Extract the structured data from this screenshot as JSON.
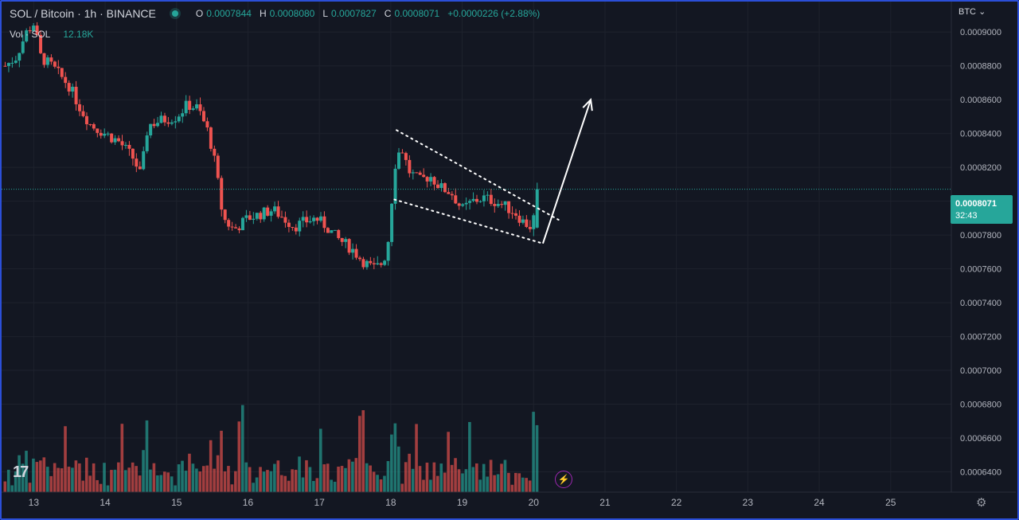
{
  "header": {
    "symbol": "SOL / Bitcoin · 1h · BINANCE",
    "o_label": "O",
    "o_value": "0.0007844",
    "h_label": "H",
    "h_value": "0.0008080",
    "l_label": "L",
    "l_value": "0.0007827",
    "c_label": "C",
    "c_value": "0.0008071",
    "change": "+0.0000226 (+2.88%)",
    "volume_label": "Vol · SOL",
    "volume_value": "12.18K"
  },
  "currency_dropdown": "BTC",
  "price_tag": {
    "price": "0.0008071",
    "countdown": "32:43"
  },
  "logo": "17",
  "colors": {
    "up": "#26a69a",
    "down": "#ef5350",
    "background": "#131722",
    "grid": "#1e222d",
    "text": "#b2b5be"
  },
  "chart_data": {
    "type": "candlestick",
    "y_tick_labels": [
      "0.0009000",
      "0.0008800",
      "0.0008600",
      "0.0008400",
      "0.0008200",
      "0.0008000",
      "0.0007800",
      "0.0007600",
      "0.0007400",
      "0.0007200",
      "0.0007000",
      "0.0006800",
      "0.0006600",
      "0.0006400"
    ],
    "y_ticks": [
      0.0009,
      0.00088,
      0.00086,
      0.00084,
      0.00082,
      0.0008,
      0.00078,
      0.00076,
      0.00074,
      0.00072,
      0.0007,
      0.00068,
      0.00066,
      0.00064
    ],
    "x_tick_labels": [
      "13",
      "14",
      "15",
      "16",
      "17",
      "18",
      "19",
      "20",
      "21",
      "22",
      "23",
      "24",
      "25"
    ],
    "x_ticks": [
      13,
      14,
      15,
      16,
      17,
      18,
      19,
      20,
      21,
      22,
      23,
      24,
      25
    ],
    "ylim": [
      0.000628,
      0.000918
    ],
    "xlim": [
      12.55,
      25.85
    ],
    "price_path": [
      [
        12.6,
        0.00088
      ],
      [
        12.75,
        0.000885
      ],
      [
        12.9,
        0.0009
      ],
      [
        13.0,
        0.000905
      ],
      [
        13.1,
        0.000885
      ],
      [
        13.25,
        0.00088
      ],
      [
        13.5,
        0.000868
      ],
      [
        13.65,
        0.000855
      ],
      [
        13.8,
        0.000845
      ],
      [
        14.0,
        0.00084
      ],
      [
        14.2,
        0.000835
      ],
      [
        14.4,
        0.000825
      ],
      [
        14.5,
        0.000815
      ],
      [
        14.6,
        0.000845
      ],
      [
        14.8,
        0.000848
      ],
      [
        15.0,
        0.00085
      ],
      [
        15.15,
        0.000857
      ],
      [
        15.3,
        0.000855
      ],
      [
        15.45,
        0.00084
      ],
      [
        15.55,
        0.00082
      ],
      [
        15.65,
        0.00079
      ],
      [
        15.8,
        0.000783
      ],
      [
        16.0,
        0.00079
      ],
      [
        16.15,
        0.000792
      ],
      [
        16.35,
        0.000795
      ],
      [
        16.5,
        0.00079
      ],
      [
        16.65,
        0.000785
      ],
      [
        16.8,
        0.000788
      ],
      [
        16.95,
        0.00079
      ],
      [
        17.1,
        0.000785
      ],
      [
        17.25,
        0.000778
      ],
      [
        17.45,
        0.000772
      ],
      [
        17.6,
        0.000765
      ],
      [
        17.75,
        0.00076
      ],
      [
        17.85,
        0.000762
      ],
      [
        17.95,
        0.00077
      ],
      [
        18.0,
        0.000795
      ],
      [
        18.07,
        0.000825
      ],
      [
        18.15,
        0.000832
      ],
      [
        18.25,
        0.000818
      ],
      [
        18.4,
        0.000812
      ],
      [
        18.55,
        0.000815
      ],
      [
        18.7,
        0.000808
      ],
      [
        18.85,
        0.000805
      ],
      [
        19.0,
        0.000795
      ],
      [
        19.15,
        0.0008
      ],
      [
        19.3,
        0.000802
      ],
      [
        19.45,
        0.0008
      ],
      [
        19.6,
        0.000797
      ],
      [
        19.75,
        0.000793
      ],
      [
        19.85,
        0.000788
      ],
      [
        19.95,
        0.000785
      ],
      [
        20.0,
        0.00079
      ],
      [
        20.05,
        0.0008071
      ]
    ],
    "volume_bars": 151,
    "annotations": {
      "channel_upper": [
        [
          18.08,
          0.000842
        ],
        [
          20.35,
          0.000789
        ]
      ],
      "channel_lower": [
        [
          18.05,
          0.000801
        ],
        [
          20.13,
          0.000775
        ]
      ],
      "breakout_arrow": [
        [
          20.13,
          0.000775
        ],
        [
          20.8,
          0.00086
        ]
      ]
    },
    "last_price": 0.0008071
  }
}
